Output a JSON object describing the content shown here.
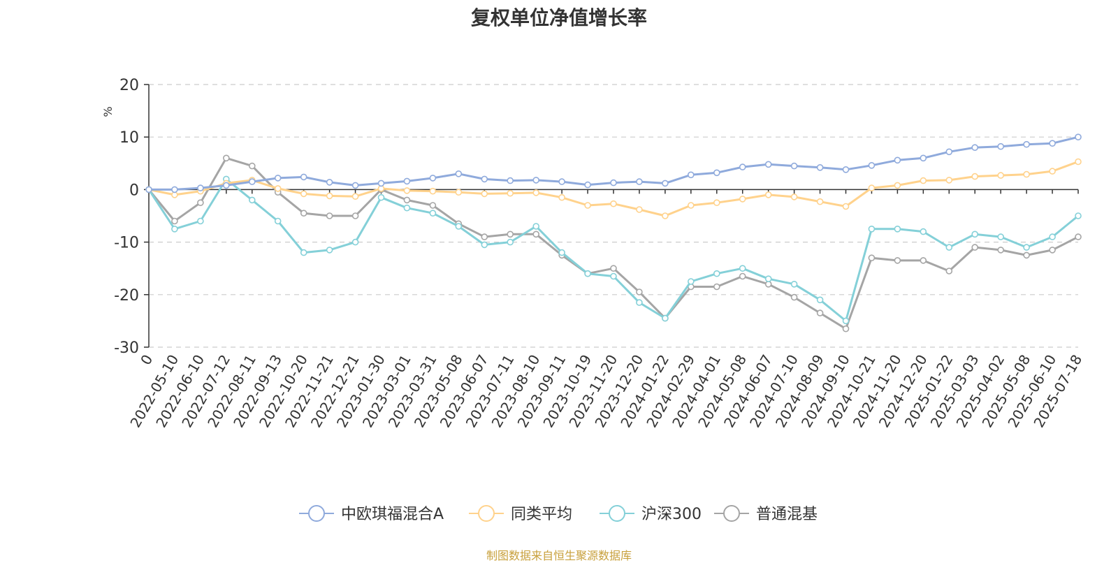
{
  "chart_data": {
    "type": "line",
    "title": "复权单位净值增长率",
    "ylabel": "%",
    "xlabel": "",
    "ylim": [
      -30,
      20
    ],
    "yticks": [
      20,
      10,
      0,
      -10,
      -20,
      -30
    ],
    "grid": true,
    "legend_position": "bottom",
    "x_tick_labels": [
      "0",
      "2022-05-10",
      "2022-06-10",
      "2022-07-12",
      "2022-08-11",
      "2022-09-13",
      "2022-10-20",
      "2022-11-21",
      "2022-12-21",
      "2023-01-30",
      "2023-03-01",
      "2023-03-31",
      "2023-05-08",
      "2023-06-07",
      "2023-07-11",
      "2023-08-10",
      "2023-09-11",
      "2023-10-19",
      "2023-11-20",
      "2023-12-20",
      "2024-01-22",
      "2024-02-29",
      "2024-04-01",
      "2024-05-08",
      "2024-06-07",
      "2024-07-10",
      "2024-08-09",
      "2024-09-10",
      "2024-10-21",
      "2024-11-20",
      "2024-12-20",
      "2025-01-22",
      "2025-03-03",
      "2025-04-02",
      "2025-05-08",
      "2025-06-10",
      "2025-07-18"
    ],
    "x": [
      "0",
      "2022-05-10",
      "2022-06-10",
      "2022-07-12",
      "2022-08-11",
      "2022-09-13",
      "2022-10-20",
      "2022-11-21",
      "2022-12-21",
      "2023-01-30",
      "2023-03-01",
      "2023-03-31",
      "2023-05-08",
      "2023-06-07",
      "2023-07-11",
      "2023-08-10",
      "2023-09-11",
      "2023-10-19",
      "2023-11-20",
      "2023-12-20",
      "2024-01-22",
      "2024-02-29",
      "2024-04-01",
      "2024-05-08",
      "2024-06-07",
      "2024-07-10",
      "2024-08-09",
      "2024-09-10",
      "2024-10-21",
      "2024-11-20",
      "2024-12-20",
      "2025-01-22",
      "2025-03-03",
      "2025-04-02",
      "2025-05-08",
      "2025-06-10",
      "2025-07-18"
    ],
    "series": [
      {
        "name": "中欧琪福混合A",
        "color": "#8faadc",
        "values": [
          0,
          0,
          0.3,
          0.8,
          1.5,
          2.2,
          2.4,
          1.4,
          0.8,
          1.2,
          1.6,
          2.2,
          3.0,
          2.0,
          1.7,
          1.8,
          1.5,
          0.9,
          1.3,
          1.5,
          1.2,
          2.8,
          3.2,
          4.3,
          4.8,
          4.5,
          4.2,
          3.8,
          4.6,
          5.6,
          6.0,
          7.2,
          8.0,
          8.2,
          8.6,
          8.8,
          10.0
        ]
      },
      {
        "name": "同类平均",
        "color": "#ffd28c",
        "values": [
          0,
          -1.0,
          -0.3,
          1.2,
          1.8,
          0.2,
          -0.8,
          -1.2,
          -1.3,
          0.2,
          -0.2,
          -0.3,
          -0.5,
          -0.8,
          -0.7,
          -0.6,
          -1.5,
          -3.0,
          -2.7,
          -3.8,
          -5.0,
          -3.0,
          -2.5,
          -1.8,
          -1.0,
          -1.4,
          -2.3,
          -3.2,
          0.3,
          0.8,
          1.7,
          1.8,
          2.5,
          2.7,
          2.9,
          3.5,
          5.3
        ]
      },
      {
        "name": "沪深300",
        "color": "#84d0d8",
        "values": [
          0,
          -7.5,
          -6.0,
          2.0,
          -2.0,
          -6.0,
          -12.0,
          -11.5,
          -10.0,
          -1.5,
          -3.5,
          -4.5,
          -7.0,
          -10.5,
          -10.0,
          -7.0,
          -12.0,
          -16.0,
          -16.5,
          -21.5,
          -24.5,
          -17.5,
          -16.0,
          -15.0,
          -17.0,
          -18.0,
          -21.0,
          -25.0,
          -7.5,
          -7.5,
          -8.0,
          -11.0,
          -8.5,
          -9.0,
          -11.0,
          -9.0,
          -5.0
        ]
      },
      {
        "name": "普通混基",
        "color": "#a5a5a5",
        "values": [
          0,
          -6.0,
          -2.5,
          6.0,
          4.5,
          -0.5,
          -4.5,
          -5.0,
          -5.0,
          0.0,
          -2.0,
          -3.0,
          -6.5,
          -9.0,
          -8.5,
          -8.5,
          -12.5,
          -16.0,
          -15.0,
          -19.5,
          -24.5,
          -18.5,
          -18.5,
          -16.5,
          -18.0,
          -20.5,
          -23.5,
          -26.5,
          -13.0,
          -13.5,
          -13.5,
          -15.5,
          -11.0,
          -11.5,
          -12.5,
          -11.5,
          -9.0
        ]
      }
    ]
  },
  "footer": {
    "source": "制图数据来自恒生聚源数据库"
  }
}
